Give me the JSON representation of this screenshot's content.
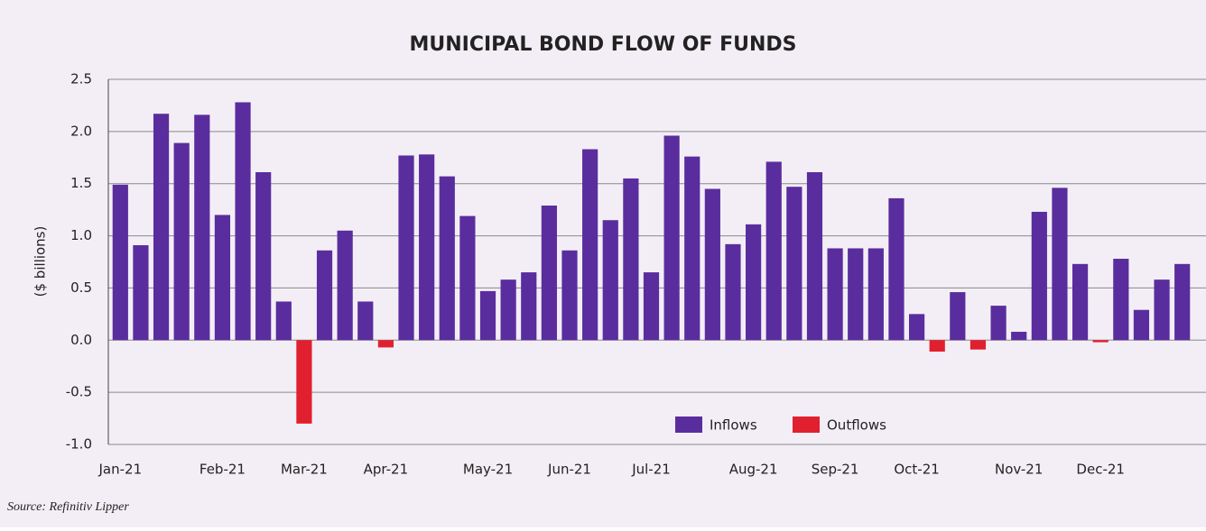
{
  "chart_data": {
    "type": "bar",
    "title": "MUNICIPAL BOND FLOW OF FUNDS",
    "y_label": "($ billions)",
    "source": "Source: Refinitiv Lipper",
    "categories": [
      "Jan-21",
      null,
      null,
      null,
      null,
      "Feb-21",
      null,
      null,
      null,
      "Mar-21",
      null,
      null,
      null,
      "Apr-21",
      null,
      null,
      null,
      null,
      "May-21",
      null,
      null,
      null,
      "Jun-21",
      null,
      null,
      null,
      "Jul-21",
      null,
      null,
      null,
      null,
      "Aug-21",
      null,
      null,
      null,
      "Sep-21",
      null,
      null,
      null,
      "Oct-21",
      null,
      null,
      null,
      null,
      "Nov-21",
      null,
      null,
      null,
      "Dec-21",
      null,
      null,
      null,
      null
    ],
    "series": [
      {
        "name": "Inflows",
        "color": "#5a2d9e",
        "values": [
          1.49,
          0.91,
          2.17,
          1.89,
          2.16,
          1.2,
          2.28,
          1.61,
          0.37,
          null,
          0.86,
          1.05,
          0.37,
          null,
          1.77,
          1.78,
          1.57,
          1.19,
          0.47,
          0.58,
          0.65,
          1.29,
          0.86,
          1.83,
          1.15,
          1.55,
          0.65,
          1.96,
          1.76,
          1.45,
          0.92,
          1.11,
          1.71,
          1.47,
          1.61,
          0.88,
          0.88,
          0.88,
          1.36,
          0.25,
          null,
          0.46,
          null,
          0.33,
          0.08,
          1.23,
          1.46,
          0.73,
          null,
          0.78,
          0.29,
          0.58,
          0.73
        ]
      },
      {
        "name": "Outflows",
        "color": "#e0202e",
        "values": [
          null,
          null,
          null,
          null,
          null,
          null,
          null,
          null,
          null,
          -0.8,
          null,
          null,
          null,
          -0.07,
          null,
          null,
          null,
          null,
          null,
          null,
          null,
          null,
          null,
          null,
          null,
          null,
          null,
          null,
          null,
          null,
          null,
          null,
          null,
          null,
          null,
          null,
          null,
          null,
          null,
          null,
          -0.11,
          null,
          -0.09,
          null,
          null,
          null,
          null,
          null,
          -0.02,
          null,
          null,
          null,
          null
        ]
      }
    ],
    "ylim": [
      -1.0,
      2.5
    ],
    "yticks": [
      {
        "value": -1.0,
        "label": "-1.0"
      },
      -0.5,
      {
        "value": 0.0,
        "label": "0.0"
      },
      0.5,
      {
        "value": 1.0,
        "label": "1.0"
      },
      1.5,
      {
        "value": 2.0,
        "label": "2.0"
      },
      2.5
    ],
    "grid": true
  }
}
